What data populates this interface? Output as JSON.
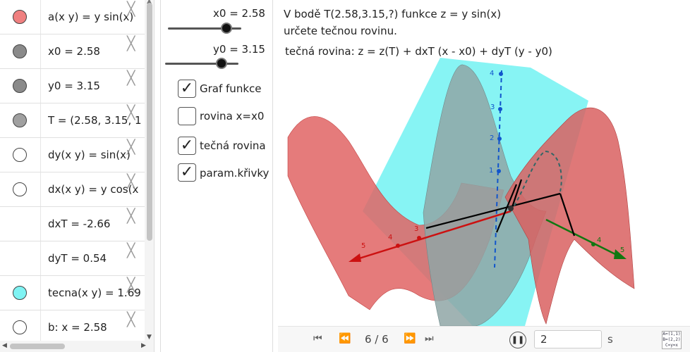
{
  "algebra": {
    "rows": [
      {
        "color": "#f08080",
        "expr": "a(x y)  =  y  sin(x)"
      },
      {
        "color": "#8a8a8a",
        "expr": "x0  =  2.58"
      },
      {
        "color": "#8a8a8a",
        "expr": "y0  =  3.15"
      },
      {
        "color": "#a0a0a0",
        "expr": "T  =  (2.58,  3.15,  1"
      },
      {
        "color": "#ffffff",
        "expr": "dy(x  y)  =  sin(x)"
      },
      {
        "color": "#ffffff",
        "expr": "dx(x  y)  =  y  cos(x"
      },
      {
        "color": "",
        "expr": "dxT  =  -2.66"
      },
      {
        "color": "",
        "expr": "dyT  =  0.54"
      },
      {
        "color": "#7ff3f3",
        "expr": "tecna(x  y)  =  1.69"
      },
      {
        "color": "#ffffff",
        "expr": "b:  x  =  2.58"
      }
    ],
    "close_glyph": "╳"
  },
  "panel": {
    "sliders": [
      {
        "label": "x0 = 2.58",
        "value": 2.58
      },
      {
        "label": "y0 = 3.15",
        "value": 3.15
      }
    ],
    "checkboxes": [
      {
        "label": "Graf funkce",
        "checked": true
      },
      {
        "label": "rovina x=x0",
        "checked": false
      },
      {
        "label": "tečná rovina",
        "checked": true
      },
      {
        "label": "param.křivky",
        "checked": true
      }
    ]
  },
  "view3d": {
    "task": "V bodě T(2.58,3.15,?) funkce z = y sin(x) určete tečnou rovinu.",
    "formula": "tečná rovina: z = z(T) + dxT (x - x0) + dyT (y - y0)",
    "z_ticks": [
      "4",
      "3",
      "2",
      "1"
    ],
    "x_ticks": [
      "5",
      "4",
      "3"
    ],
    "y_ticks": [
      "4",
      "5"
    ],
    "colors": {
      "surface": "#e05a5a",
      "tangent_plane": "#5ff0f0",
      "xaxis": "#cc1111",
      "yaxis": "#117711",
      "zaxis": "#1155cc"
    }
  },
  "playbar": {
    "counter": "6 / 6",
    "speed": "2",
    "unit": "s",
    "table_icon": "A=(1,1) B=(2,2) C=y=x"
  }
}
